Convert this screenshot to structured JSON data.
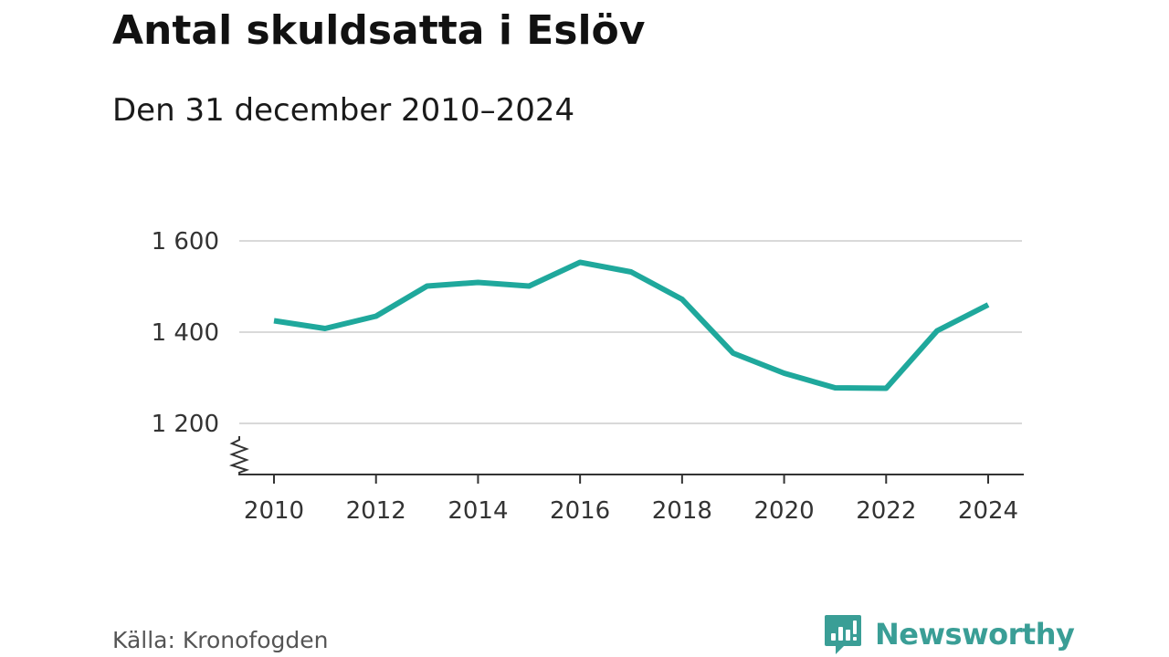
{
  "chart_data": {
    "type": "line",
    "title": "Antal skuldsatta i Eslöv",
    "subtitle": "Den 31 december 2010–2024",
    "xlabel": "",
    "ylabel": "",
    "x": [
      2010,
      2011,
      2012,
      2013,
      2014,
      2015,
      2016,
      2017,
      2018,
      2019,
      2020,
      2021,
      2022,
      2023,
      2024
    ],
    "series": [
      {
        "values": [
          1425,
          1408,
          1435,
          1501,
          1509,
          1501,
          1553,
          1532,
          1472,
          1354,
          1310,
          1278,
          1277,
          1403,
          1460
        ]
      }
    ],
    "x_ticks": [
      "2010",
      "2012",
      "2014",
      "2016",
      "2018",
      "2020",
      "2022",
      "2024"
    ],
    "y_ticks": [
      "1 200",
      "1 400",
      "1 600"
    ],
    "y_tick_values": [
      1200,
      1400,
      1600
    ],
    "xlim": [
      2010,
      2024
    ],
    "ylim": [
      1100,
      1680
    ],
    "y_axis_break": true,
    "grid": "horizontal",
    "legend": "none",
    "colors": {
      "line": "#1fa89c",
      "grid": "#d9d9d9",
      "axis": "#333333"
    }
  },
  "footer": {
    "source": "Källa: Kronofogden",
    "brand": "Newsworthy",
    "brand_icon": "newsworthy-logo-icon",
    "brand_color": "#3a9e96"
  }
}
